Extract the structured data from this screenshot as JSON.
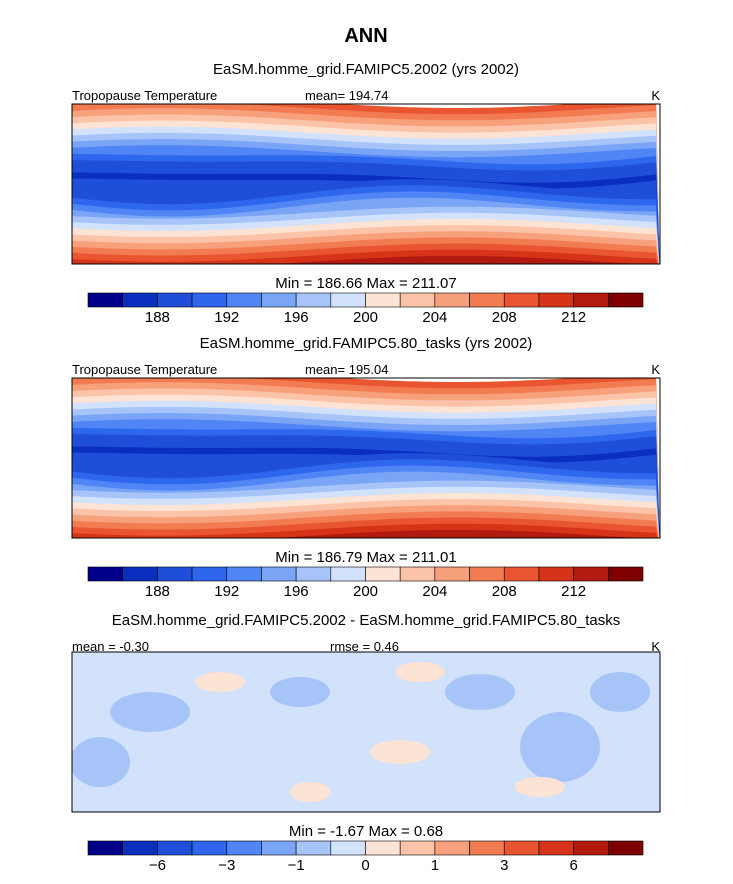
{
  "title": "ANN",
  "palette": [
    "#00008b",
    "#0a2fbf",
    "#1f4fd8",
    "#2f66ee",
    "#4f85f5",
    "#7aa5f7",
    "#a7c4f9",
    "#d2e2fb",
    "#fde3d3",
    "#fbc3a8",
    "#f7a07c",
    "#f27b52",
    "#e85530",
    "#d63319",
    "#b21a0f",
    "#7f0000"
  ],
  "panels": [
    {
      "subtitle": "EaSM.homme_grid.FAMIPC5.2002 (yrs 2002)",
      "left_label": "Tropopause Temperature",
      "center_label": "mean= 194.74",
      "units": "K",
      "minmax": "Min = 186.66 Max = 211.07",
      "colorbar_labels": [
        "188",
        "192",
        "196",
        "200",
        "204",
        "208",
        "212"
      ]
    },
    {
      "subtitle": "EaSM.homme_grid.FAMIPC5.80_tasks (yrs 2002)",
      "left_label": "Tropopause Temperature",
      "center_label": "mean= 195.04",
      "units": "K",
      "minmax": "Min = 186.79 Max = 211.01",
      "colorbar_labels": [
        "188",
        "192",
        "196",
        "200",
        "204",
        "208",
        "212"
      ]
    },
    {
      "subtitle": "EaSM.homme_grid.FAMIPC5.2002 - EaSM.homme_grid.FAMIPC5.80_tasks",
      "left_label": "mean = -0.30",
      "center_label": "rmse = 0.46",
      "units": "K",
      "minmax": "Min = -1.67 Max = 0.68",
      "colorbar_labels": [
        "−6",
        "−3",
        "−1",
        "0",
        "1",
        "3",
        "6"
      ]
    }
  ]
}
